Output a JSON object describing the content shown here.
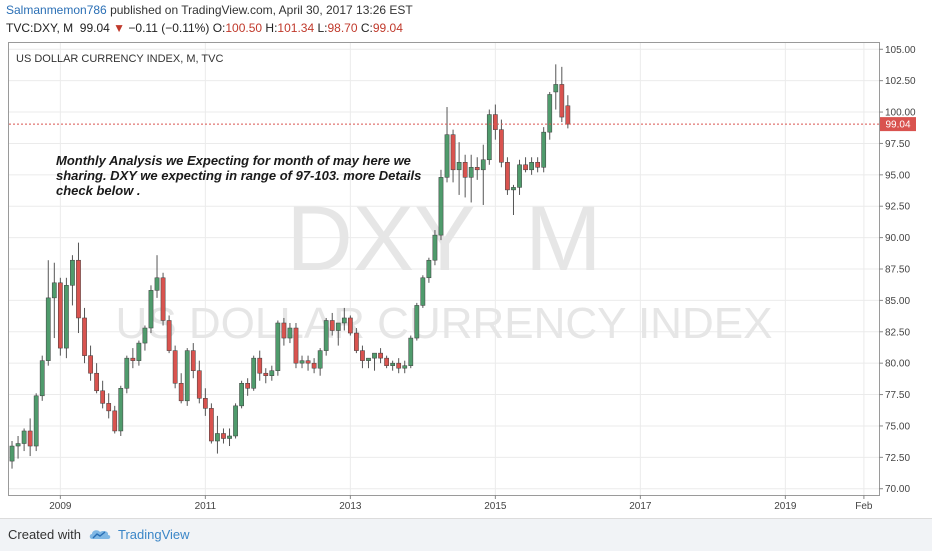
{
  "header": {
    "author": "Salmanmemon786",
    "published": "published on TradingView.com, April 30, 2017 13:26 EST",
    "symbol": "TVC:DXY, M",
    "last": "99.04",
    "down_arrow": "▼",
    "change": "−0.11 (−0.11%)",
    "o_label": "O:",
    "o_value": "100.50",
    "h_label": "H:",
    "h_value": "101.34",
    "l_label": "L:",
    "l_value": "98.70",
    "c_label": "C:",
    "c_value": "99.04"
  },
  "chart_data": {
    "type": "candlestick",
    "title": "US DOLLAR CURRENCY INDEX, M, TVC",
    "watermark_symbol": "DXY  M",
    "watermark_name": "US DOLLAR CURRENCY INDEX",
    "annotation": "Monthly Analysis we Expecting for month of may here we sharing. DXY we expecting in range of 97-103. more Details check below .",
    "current_price_label": "99.04",
    "current_price": 99.04,
    "ylim": [
      69.5,
      105.5
    ],
    "y_ticks": [
      "70.00",
      "72.50",
      "75.00",
      "77.50",
      "80.00",
      "82.50",
      "85.00",
      "87.50",
      "90.00",
      "92.50",
      "95.00",
      "97.50",
      "100.00",
      "102.50",
      "105.00"
    ],
    "x_ticks": [
      {
        "label": "2009",
        "index": 8
      },
      {
        "label": "2011",
        "index": 32
      },
      {
        "label": "2013",
        "index": 56
      },
      {
        "label": "2015",
        "index": 80
      },
      {
        "label": "2017",
        "index": 104
      },
      {
        "label": "2019",
        "index": 128
      },
      {
        "label": "Feb",
        "index": 141
      }
    ],
    "x_range": [
      -0.5,
      143.5
    ],
    "colors": {
      "up": "#4f9b6c",
      "down": "#d9534f",
      "wick": "#555555",
      "price_line": "#d9534f",
      "grid": "#ebebeb"
    },
    "candles": [
      [
        72.2,
        73.8,
        71.6,
        73.4
      ],
      [
        73.4,
        74.2,
        72.4,
        73.6
      ],
      [
        73.6,
        74.8,
        73.0,
        74.6
      ],
      [
        74.6,
        75.6,
        72.6,
        73.4
      ],
      [
        73.4,
        77.6,
        73.0,
        77.4
      ],
      [
        77.4,
        80.6,
        77.0,
        80.2
      ],
      [
        80.2,
        88.2,
        79.8,
        85.2
      ],
      [
        85.2,
        88.0,
        82.0,
        86.4
      ],
      [
        86.4,
        86.8,
        80.6,
        81.2
      ],
      [
        81.2,
        86.8,
        80.4,
        86.2
      ],
      [
        86.2,
        88.6,
        84.6,
        88.2
      ],
      [
        88.2,
        89.6,
        82.4,
        83.6
      ],
      [
        83.6,
        84.4,
        80.0,
        80.6
      ],
      [
        80.6,
        81.4,
        78.6,
        79.2
      ],
      [
        79.2,
        80.0,
        77.6,
        77.8
      ],
      [
        77.8,
        78.6,
        76.4,
        76.8
      ],
      [
        76.8,
        77.6,
        75.6,
        76.2
      ],
      [
        76.2,
        76.6,
        74.4,
        74.6
      ],
      [
        74.6,
        78.2,
        74.2,
        78.0
      ],
      [
        78.0,
        80.6,
        77.6,
        80.4
      ],
      [
        80.4,
        81.2,
        79.6,
        80.2
      ],
      [
        80.2,
        81.8,
        79.8,
        81.6
      ],
      [
        81.6,
        83.0,
        81.0,
        82.8
      ],
      [
        82.8,
        86.2,
        82.4,
        85.8
      ],
      [
        85.8,
        88.6,
        85.2,
        86.8
      ],
      [
        86.8,
        87.2,
        83.0,
        83.4
      ],
      [
        83.4,
        83.8,
        80.8,
        81.0
      ],
      [
        81.0,
        81.4,
        78.0,
        78.4
      ],
      [
        78.4,
        79.2,
        76.8,
        77.0
      ],
      [
        77.0,
        81.2,
        76.6,
        81.0
      ],
      [
        81.0,
        81.6,
        78.8,
        79.4
      ],
      [
        79.4,
        80.2,
        76.8,
        77.2
      ],
      [
        77.2,
        78.0,
        75.8,
        76.4
      ],
      [
        76.4,
        76.8,
        73.6,
        73.8
      ],
      [
        73.8,
        75.8,
        72.8,
        74.4
      ],
      [
        74.4,
        74.8,
        73.6,
        74.0
      ],
      [
        74.0,
        74.8,
        73.4,
        74.2
      ],
      [
        74.2,
        76.8,
        74.0,
        76.6
      ],
      [
        76.6,
        78.6,
        76.4,
        78.4
      ],
      [
        78.4,
        78.8,
        77.4,
        78.0
      ],
      [
        78.0,
        80.6,
        77.8,
        80.4
      ],
      [
        80.4,
        81.0,
        78.6,
        79.2
      ],
      [
        79.2,
        79.6,
        78.4,
        79.0
      ],
      [
        79.0,
        79.8,
        78.6,
        79.4
      ],
      [
        79.4,
        83.4,
        79.0,
        83.2
      ],
      [
        83.2,
        83.6,
        81.4,
        82.0
      ],
      [
        82.0,
        83.2,
        81.6,
        82.8
      ],
      [
        82.8,
        83.2,
        79.6,
        80.0
      ],
      [
        80.0,
        80.6,
        79.6,
        80.2
      ],
      [
        80.2,
        80.6,
        79.4,
        80.0
      ],
      [
        80.0,
        80.4,
        79.2,
        79.6
      ],
      [
        79.6,
        81.2,
        79.0,
        81.0
      ],
      [
        81.0,
        83.6,
        80.6,
        83.4
      ],
      [
        83.4,
        84.0,
        82.2,
        82.6
      ],
      [
        82.6,
        83.0,
        81.4,
        83.2
      ],
      [
        83.2,
        84.4,
        82.6,
        83.6
      ],
      [
        83.6,
        83.8,
        82.2,
        82.4
      ],
      [
        82.4,
        82.8,
        80.8,
        81.0
      ],
      [
        81.0,
        81.4,
        79.6,
        80.2
      ],
      [
        80.2,
        80.4,
        79.6,
        80.4
      ],
      [
        80.4,
        80.6,
        79.4,
        80.8
      ],
      [
        80.8,
        81.2,
        80.0,
        80.4
      ],
      [
        80.4,
        80.6,
        79.6,
        79.8
      ],
      [
        79.8,
        80.2,
        79.4,
        80.0
      ],
      [
        80.0,
        80.4,
        79.2,
        79.6
      ],
      [
        79.6,
        80.2,
        79.2,
        79.8
      ],
      [
        79.8,
        82.2,
        79.6,
        82.0
      ],
      [
        82.0,
        84.8,
        81.8,
        84.6
      ],
      [
        84.6,
        87.0,
        84.4,
        86.8
      ],
      [
        86.8,
        88.4,
        86.4,
        88.2
      ],
      [
        88.2,
        90.6,
        87.8,
        90.2
      ],
      [
        90.2,
        95.4,
        89.8,
        94.8
      ],
      [
        94.8,
        100.4,
        94.4,
        98.2
      ],
      [
        98.2,
        98.6,
        94.4,
        95.4
      ],
      [
        95.4,
        97.6,
        93.4,
        96.0
      ],
      [
        96.0,
        96.6,
        93.2,
        94.8
      ],
      [
        94.8,
        96.6,
        92.8,
        95.6
      ],
      [
        95.6,
        96.4,
        94.6,
        95.4
      ],
      [
        95.4,
        97.4,
        92.6,
        96.2
      ],
      [
        96.2,
        100.2,
        95.8,
        99.8
      ],
      [
        99.8,
        100.6,
        97.8,
        98.6
      ],
      [
        98.6,
        99.4,
        95.6,
        96.0
      ],
      [
        96.0,
        96.4,
        93.4,
        93.8
      ],
      [
        93.8,
        94.2,
        91.8,
        94.0
      ],
      [
        94.0,
        96.2,
        93.4,
        95.8
      ],
      [
        95.8,
        96.4,
        95.2,
        95.4
      ],
      [
        95.4,
        96.4,
        95.0,
        96.0
      ],
      [
        96.0,
        96.4,
        95.2,
        95.6
      ],
      [
        95.6,
        98.8,
        95.2,
        98.4
      ],
      [
        98.4,
        101.6,
        97.8,
        101.4
      ],
      [
        101.6,
        103.8,
        100.2,
        102.2
      ],
      [
        102.2,
        103.6,
        99.2,
        99.6
      ],
      [
        100.5,
        101.34,
        98.7,
        99.04
      ]
    ]
  },
  "footer": {
    "created_with": "Created with",
    "brand": "TradingView"
  }
}
